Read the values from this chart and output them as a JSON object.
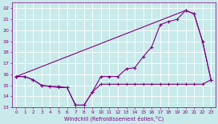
{
  "xlabel": "Windchill (Refroidissement éolien,°C)",
  "bg_color": "#c8eaea",
  "grid_color": "#ffffff",
  "line_color": "#800080",
  "line_color2": "#9900aa",
  "ylim": [
    13.0,
    22.5
  ],
  "xlim": [
    -0.5,
    23.5
  ],
  "yticks": [
    13,
    14,
    15,
    16,
    17,
    18,
    19,
    20,
    21,
    22
  ],
  "xticks": [
    0,
    1,
    2,
    3,
    4,
    5,
    6,
    7,
    8,
    9,
    10,
    11,
    12,
    13,
    14,
    15,
    16,
    17,
    18,
    19,
    20,
    21,
    22,
    23
  ],
  "zz_x": [
    0,
    1,
    2,
    3,
    4,
    5,
    6,
    7,
    8,
    9,
    10,
    11,
    12,
    13,
    14,
    15,
    16,
    17,
    18,
    19,
    20,
    21,
    22,
    23
  ],
  "zz_y": [
    15.8,
    15.8,
    15.5,
    15.0,
    14.9,
    14.9,
    14.8,
    13.2,
    13.2,
    14.4,
    15.8,
    15.8,
    15.8,
    16.5,
    16.6,
    17.6,
    18.5,
    20.5,
    20.8,
    21.0,
    21.8,
    21.5,
    19.0,
    15.5
  ],
  "diag_x": [
    0,
    20,
    21,
    22,
    23
  ],
  "diag_y": [
    15.8,
    21.8,
    21.5,
    19.0,
    15.5
  ],
  "flat_x": [
    0,
    1,
    2,
    3,
    4,
    5,
    6,
    7,
    8,
    9,
    10,
    11,
    12,
    13,
    14,
    15,
    16,
    17,
    18,
    19,
    20,
    21,
    22,
    23
  ],
  "flat_y": [
    15.8,
    15.8,
    15.5,
    15.0,
    14.9,
    14.8,
    14.8,
    13.2,
    13.2,
    14.4,
    15.1,
    15.1,
    15.1,
    15.1,
    15.1,
    15.1,
    15.1,
    15.1,
    15.1,
    15.1,
    15.1,
    15.1,
    15.1,
    15.5
  ]
}
